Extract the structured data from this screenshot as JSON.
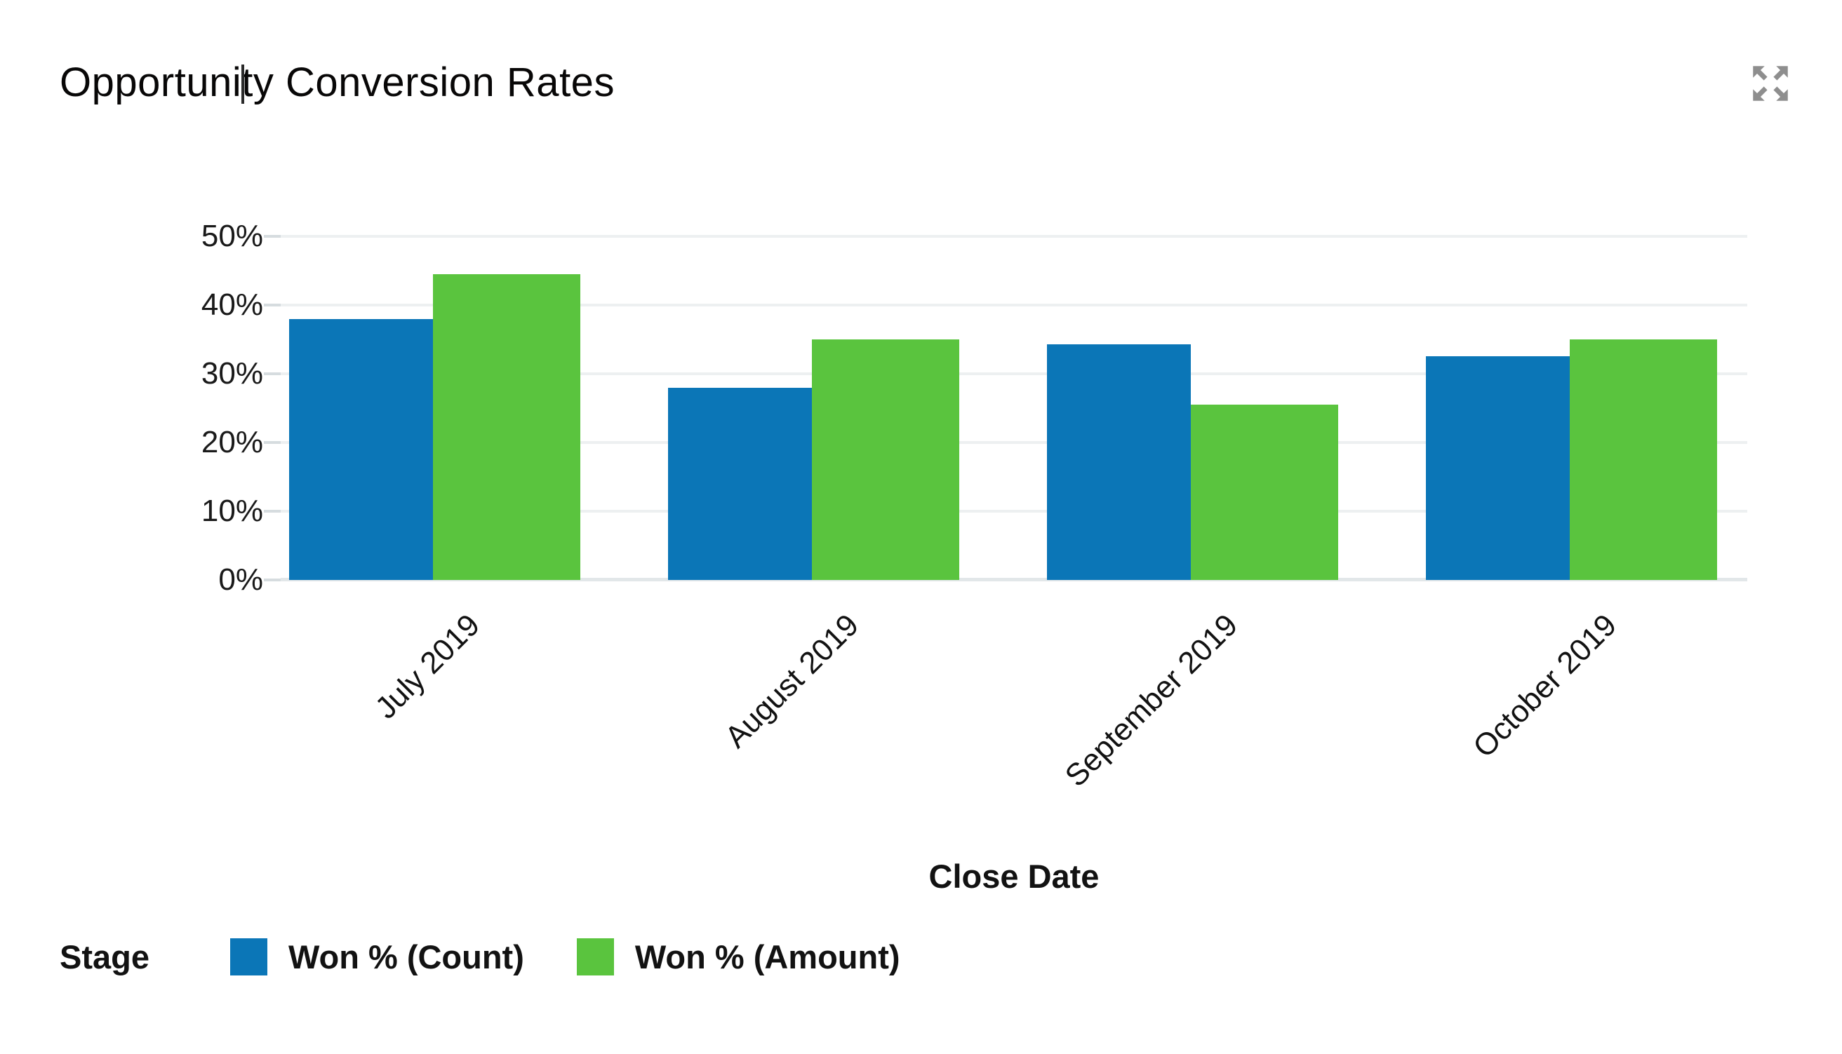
{
  "header": {
    "title": "Opportunity Conversion Rates",
    "expand_icon": "expand-arrows-icon"
  },
  "chart_data": {
    "type": "bar",
    "title": "Opportunity Conversion Rates",
    "categories": [
      "July 2019",
      "August 2019",
      "September 2019",
      "October 2019"
    ],
    "series": [
      {
        "name": "Won % (Count)",
        "color": "#0b76b7",
        "values": [
          38,
          28,
          34.3,
          32.6
        ]
      },
      {
        "name": "Won % (Amount)",
        "color": "#5ac43e",
        "values": [
          44.5,
          35,
          25.5,
          35
        ]
      }
    ],
    "xlabel": "Close Date",
    "legend_title": "Stage",
    "ylim": [
      0,
      50
    ],
    "ytick_labels": [
      "0%",
      "10%",
      "20%",
      "30%",
      "40%",
      "50%"
    ],
    "grid": "horizontal",
    "legend_position": "bottom-left",
    "x_tick_rotation_deg": -45
  },
  "colors": {
    "bar_blue": "#0b76b7",
    "bar_green": "#5ac43e",
    "gridline": "#edf0f1",
    "axis_line": "#e2e7e9",
    "tick": "#d6dcdf",
    "text": "#121212",
    "expand_icon_gray": "#8e8e8e"
  }
}
